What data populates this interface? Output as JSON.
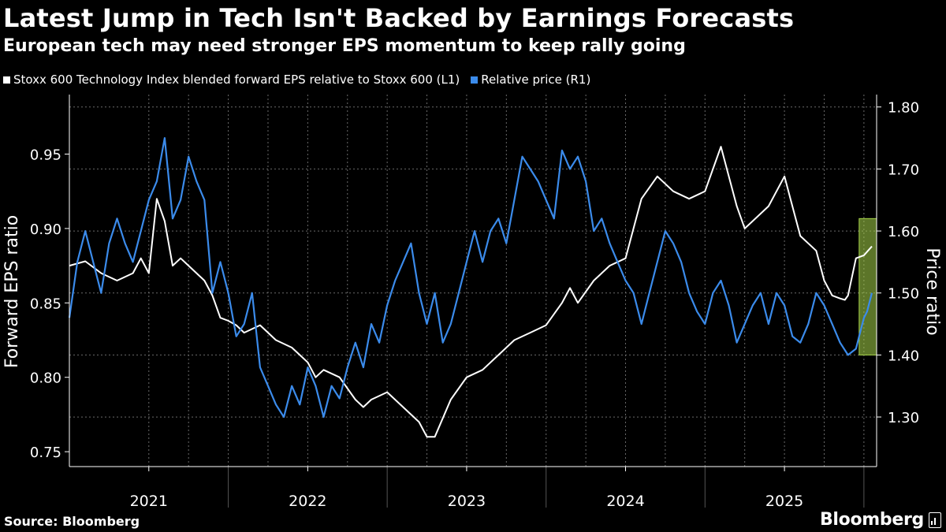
{
  "header": {
    "title": "Latest Jump in Tech Isn't Backed by Earnings Forecasts",
    "subtitle": "European tech may need stronger EPS momentum to keep rally going"
  },
  "footer": {
    "source": "Source: Bloomberg",
    "brand": "Bloomberg"
  },
  "chart_data": {
    "type": "line",
    "title": "Latest Jump in Tech Isn't Backed by Earnings Forecasts",
    "subtitle": "European tech may need stronger EPS momentum to keep rally going",
    "xlabel": "",
    "x_ticks": [
      "2021",
      "2022",
      "2023",
      "2024",
      "2025"
    ],
    "x_range": [
      2020.5,
      2025.58
    ],
    "left_axis": {
      "label": "Forward EPS ratio",
      "range": [
        0.74,
        0.99
      ],
      "ticks": [
        "0.75",
        "0.80",
        "0.85",
        "0.90",
        "0.95"
      ]
    },
    "right_axis": {
      "label": "Price ratio",
      "range": [
        1.22,
        1.82
      ],
      "ticks": [
        "1.30",
        "1.40",
        "1.50",
        "1.60",
        "1.70",
        "1.80"
      ]
    },
    "grid": true,
    "legend_position": "top-left",
    "highlight": {
      "x_range": [
        2025.47,
        2025.58
      ],
      "y_range_right": [
        1.4,
        1.62
      ],
      "color": "#a8d54a"
    },
    "series": [
      {
        "name": "Stoxx 600 Technology Index blended forward EPS relative to Stoxx 600 (L1)",
        "axis": "left",
        "color": "#ffffff",
        "x": [
          2020.5,
          2020.6,
          2020.7,
          2020.8,
          2020.9,
          2020.95,
          2021.0,
          2021.05,
          2021.1,
          2021.15,
          2021.2,
          2021.25,
          2021.3,
          2021.35,
          2021.4,
          2021.45,
          2021.5,
          2021.55,
          2021.6,
          2021.7,
          2021.8,
          2021.9,
          2021.95,
          2022.0,
          2022.05,
          2022.1,
          2022.2,
          2022.3,
          2022.35,
          2022.4,
          2022.5,
          2022.6,
          2022.7,
          2022.75,
          2022.8,
          2022.9,
          2023.0,
          2023.1,
          2023.2,
          2023.3,
          2023.4,
          2023.5,
          2023.6,
          2023.65,
          2023.7,
          2023.8,
          2023.9,
          2024.0,
          2024.05,
          2024.1,
          2024.2,
          2024.3,
          2024.4,
          2024.5,
          2024.6,
          2024.7,
          2024.75,
          2024.8,
          2024.9,
          2025.0,
          2025.1,
          2025.2,
          2025.25,
          2025.3,
          2025.35,
          2025.38,
          2025.4,
          2025.45,
          2025.5,
          2025.55
        ],
        "y": [
          0.875,
          0.878,
          0.87,
          0.865,
          0.87,
          0.88,
          0.87,
          0.92,
          0.905,
          0.875,
          0.88,
          0.875,
          0.87,
          0.865,
          0.855,
          0.84,
          0.838,
          0.835,
          0.83,
          0.835,
          0.825,
          0.82,
          0.815,
          0.81,
          0.8,
          0.805,
          0.8,
          0.785,
          0.78,
          0.785,
          0.79,
          0.78,
          0.77,
          0.76,
          0.76,
          0.785,
          0.8,
          0.805,
          0.815,
          0.825,
          0.83,
          0.835,
          0.85,
          0.86,
          0.85,
          0.865,
          0.875,
          0.88,
          0.9,
          0.92,
          0.935,
          0.925,
          0.92,
          0.925,
          0.955,
          0.915,
          0.9,
          0.905,
          0.915,
          0.935,
          0.895,
          0.885,
          0.865,
          0.855,
          0.853,
          0.852,
          0.855,
          0.88,
          0.882,
          0.888
        ]
      },
      {
        "name": "Relative price (R1)",
        "axis": "right",
        "color": "#3b8beb",
        "x": [
          2020.5,
          2020.55,
          2020.6,
          2020.65,
          2020.7,
          2020.75,
          2020.8,
          2020.85,
          2020.9,
          2020.95,
          2021.0,
          2021.05,
          2021.1,
          2021.15,
          2021.2,
          2021.25,
          2021.3,
          2021.35,
          2021.4,
          2021.45,
          2021.5,
          2021.55,
          2021.6,
          2021.65,
          2021.7,
          2021.75,
          2021.8,
          2021.85,
          2021.9,
          2021.95,
          2022.0,
          2022.05,
          2022.1,
          2022.15,
          2022.2,
          2022.25,
          2022.3,
          2022.35,
          2022.4,
          2022.45,
          2022.5,
          2022.55,
          2022.6,
          2022.65,
          2022.7,
          2022.75,
          2022.8,
          2022.85,
          2022.9,
          2022.95,
          2023.0,
          2023.05,
          2023.1,
          2023.15,
          2023.2,
          2023.25,
          2023.3,
          2023.35,
          2023.4,
          2023.45,
          2023.5,
          2023.55,
          2023.6,
          2023.65,
          2023.7,
          2023.75,
          2023.8,
          2023.85,
          2023.9,
          2023.95,
          2024.0,
          2024.05,
          2024.1,
          2024.15,
          2024.2,
          2024.25,
          2024.3,
          2024.35,
          2024.4,
          2024.45,
          2024.5,
          2024.55,
          2024.6,
          2024.65,
          2024.7,
          2024.75,
          2024.8,
          2024.85,
          2024.9,
          2024.95,
          2025.0,
          2025.05,
          2025.1,
          2025.15,
          2025.2,
          2025.25,
          2025.3,
          2025.35,
          2025.4,
          2025.45,
          2025.48,
          2025.5,
          2025.52,
          2025.55
        ],
        "y": [
          1.46,
          1.55,
          1.6,
          1.55,
          1.5,
          1.58,
          1.62,
          1.58,
          1.55,
          1.6,
          1.65,
          1.68,
          1.75,
          1.62,
          1.65,
          1.72,
          1.68,
          1.65,
          1.5,
          1.55,
          1.5,
          1.43,
          1.45,
          1.5,
          1.38,
          1.35,
          1.32,
          1.3,
          1.35,
          1.32,
          1.38,
          1.35,
          1.3,
          1.35,
          1.33,
          1.38,
          1.42,
          1.38,
          1.45,
          1.42,
          1.48,
          1.52,
          1.55,
          1.58,
          1.5,
          1.45,
          1.5,
          1.42,
          1.45,
          1.5,
          1.55,
          1.6,
          1.55,
          1.6,
          1.62,
          1.58,
          1.65,
          1.72,
          1.7,
          1.68,
          1.65,
          1.62,
          1.73,
          1.7,
          1.72,
          1.68,
          1.6,
          1.62,
          1.58,
          1.55,
          1.52,
          1.5,
          1.45,
          1.5,
          1.55,
          1.6,
          1.58,
          1.55,
          1.5,
          1.47,
          1.45,
          1.5,
          1.52,
          1.48,
          1.42,
          1.45,
          1.48,
          1.5,
          1.45,
          1.5,
          1.48,
          1.43,
          1.42,
          1.45,
          1.5,
          1.48,
          1.45,
          1.42,
          1.4,
          1.41,
          1.44,
          1.46,
          1.47,
          1.5
        ]
      }
    ]
  }
}
